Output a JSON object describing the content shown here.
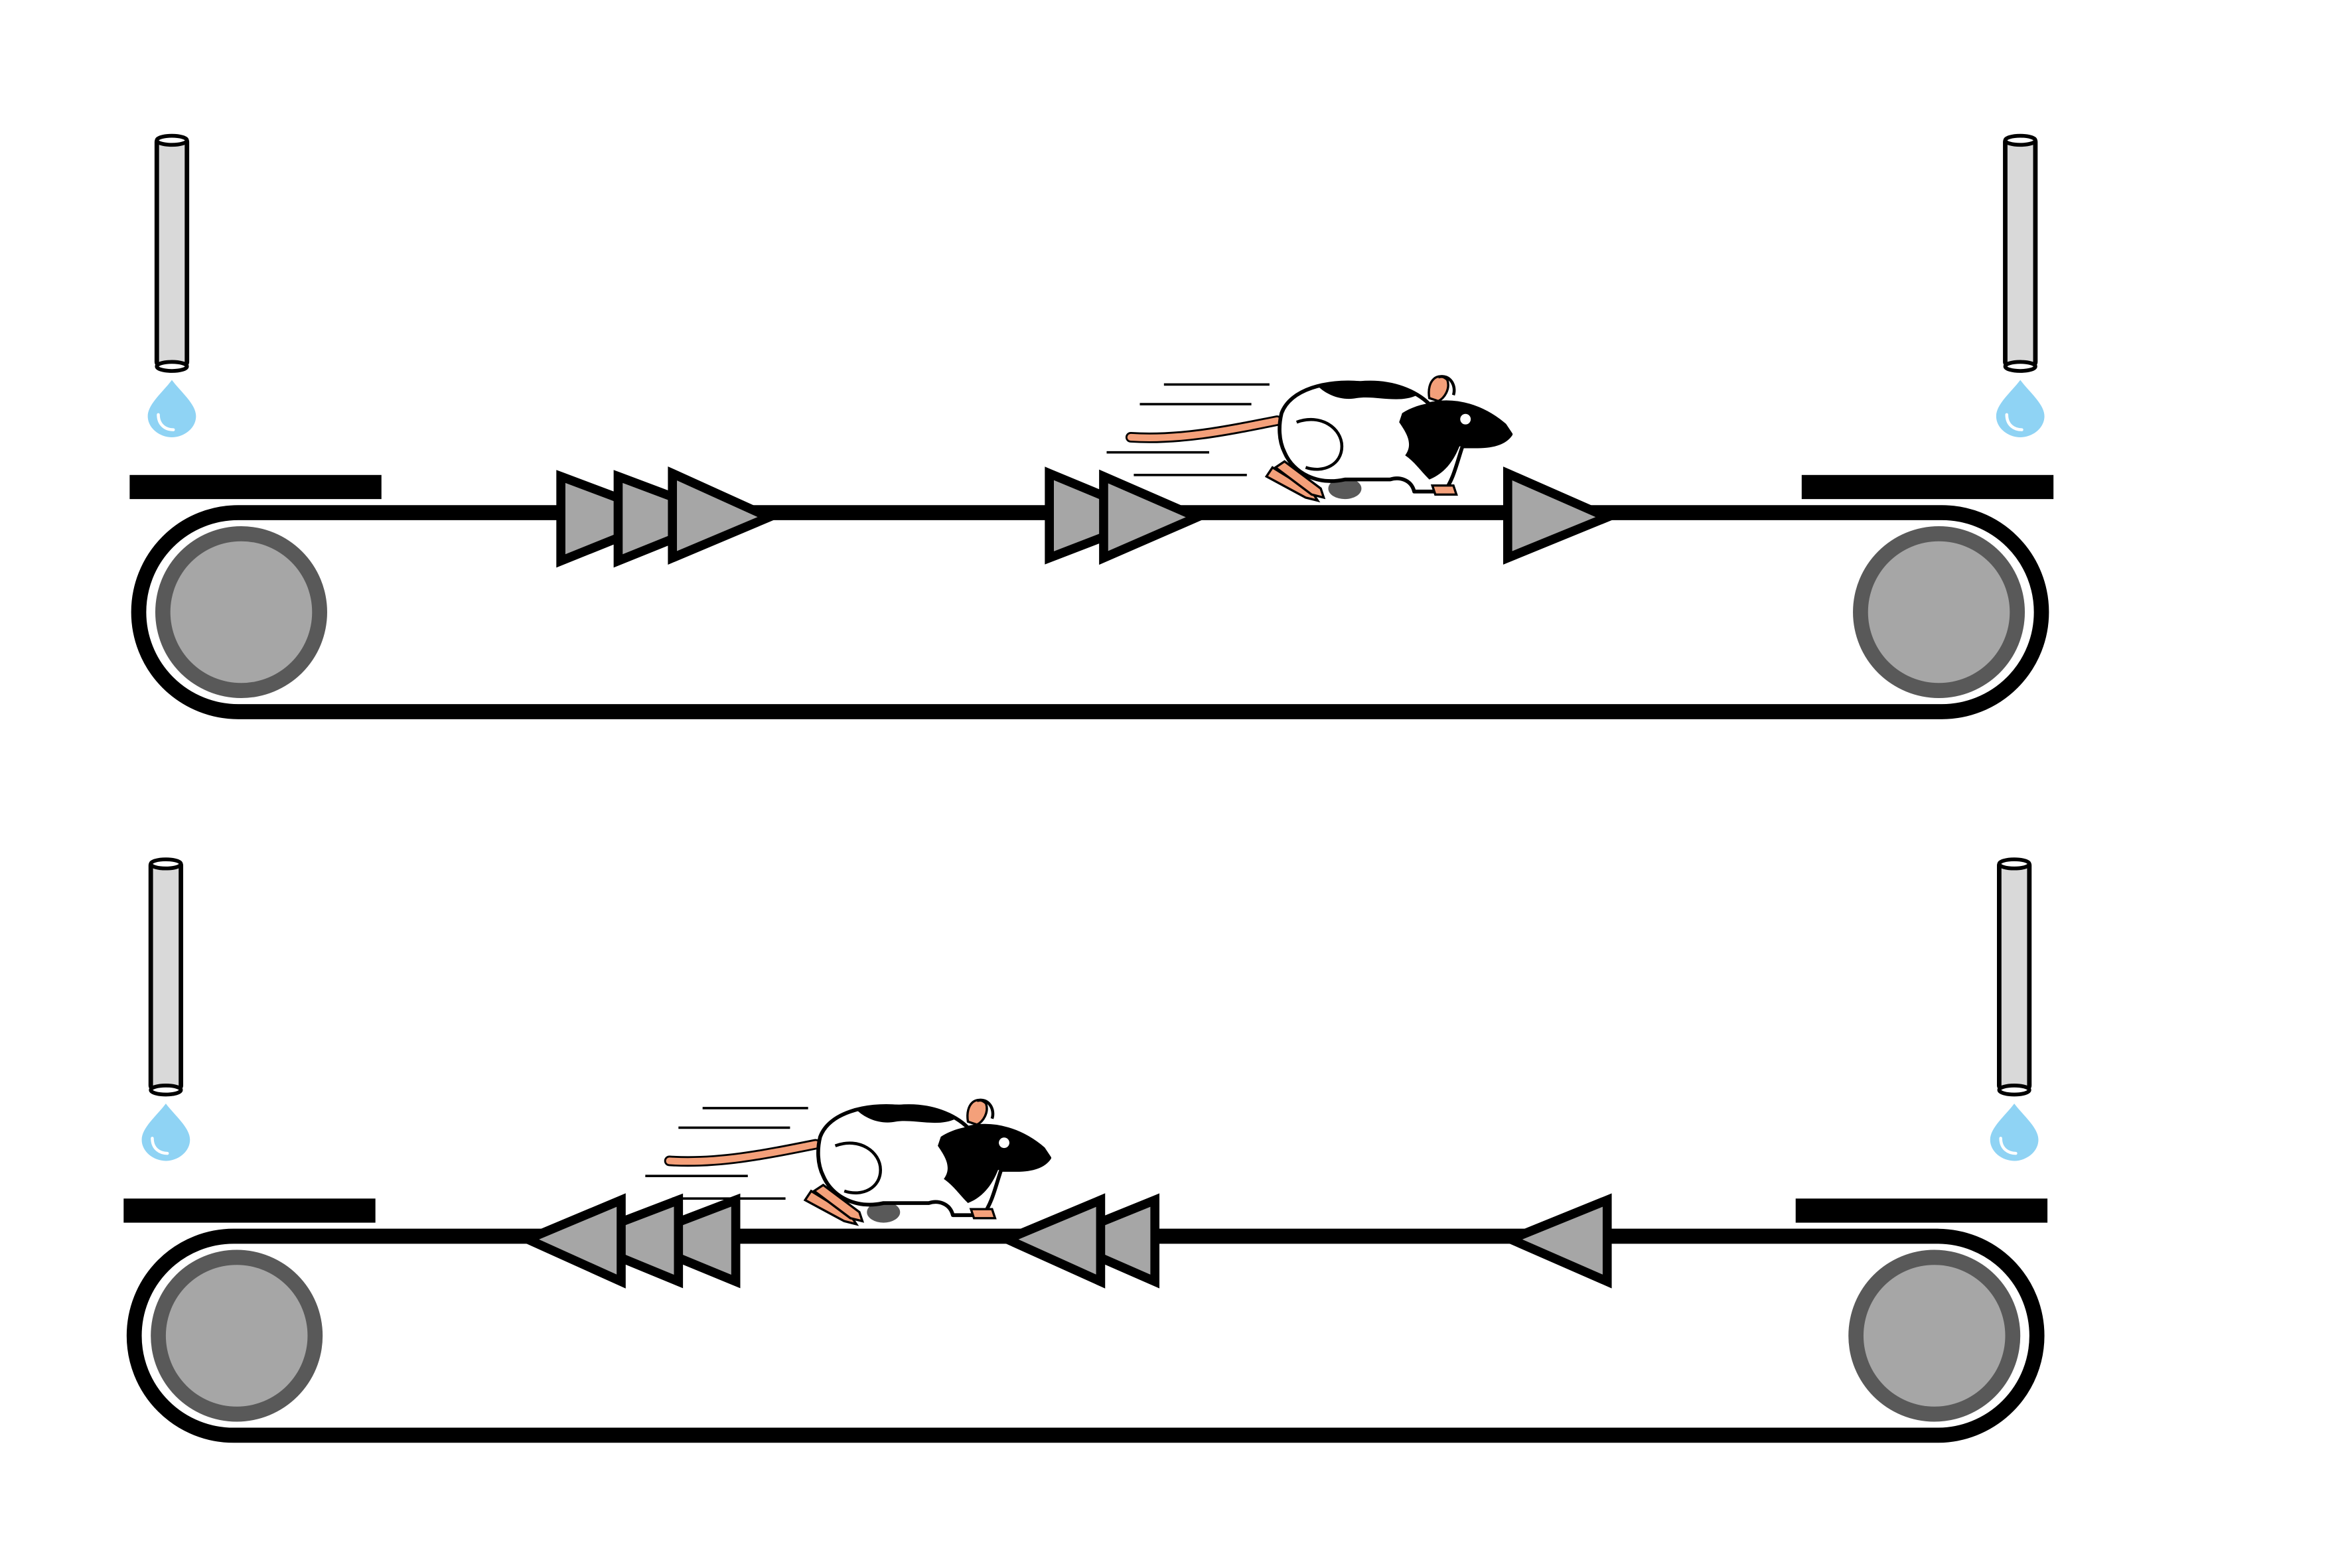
{
  "figure": {
    "panels": [
      {
        "id": "top",
        "belt_direction": "rightward",
        "chevron_groups": [
          3,
          2,
          1
        ]
      },
      {
        "id": "bottom",
        "belt_direction": "leftward",
        "chevron_groups": [
          3,
          2,
          1
        ]
      }
    ],
    "colors": {
      "belt": "#000000",
      "roller": "#a6a6a6",
      "roller_rim": "#595959",
      "chevron": "#a6a6a6",
      "water_drop": "#8fd3f4",
      "spout": "#d9d9d9",
      "rat_tail": "#f4a07a"
    }
  }
}
